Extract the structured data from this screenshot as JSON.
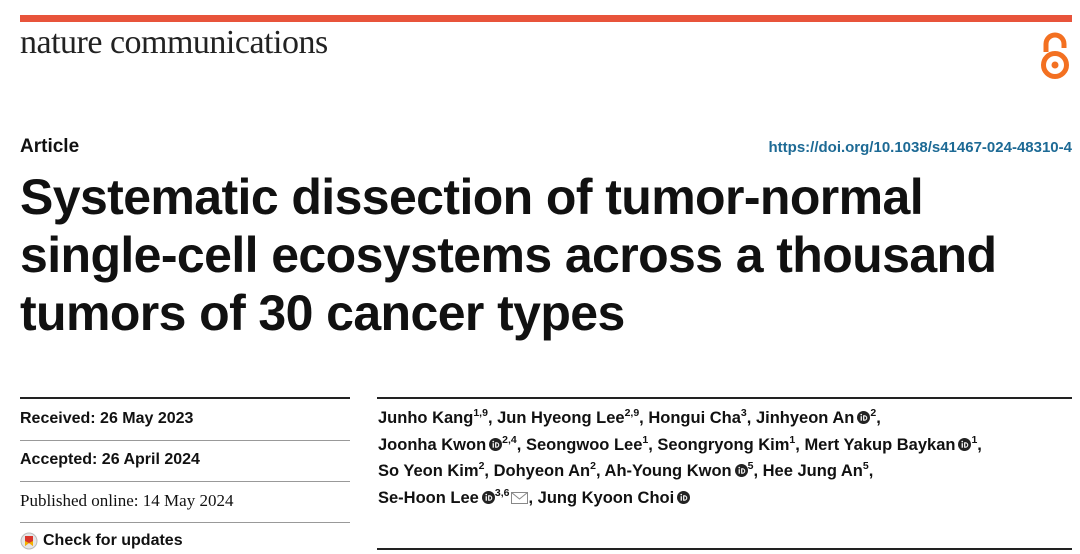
{
  "journal": {
    "name": "nature communications",
    "brand_color": "#e8543b",
    "open_access_icon": "open-access-icon"
  },
  "article": {
    "type": "Article",
    "doi": "https://doi.org/10.1038/s41467-024-48310-4",
    "title_lines": [
      "Systematic dissection of tumor-normal",
      "single-cell ecosystems across a thousand",
      "tumors of 30 cancer types"
    ]
  },
  "dates": {
    "received": "Received: 26 May 2023",
    "accepted": "Accepted: 26 April 2024",
    "published": "Published online: 14 May 2024"
  },
  "check_updates": {
    "label": "Check for updates",
    "icon": "check-for-updates-icon"
  },
  "authors": [
    {
      "name": "Junho Kang",
      "aff": "1,9",
      "orcid": false
    },
    {
      "name": "Jun Hyeong Lee",
      "aff": "2,9",
      "orcid": false
    },
    {
      "name": "Hongui Cha",
      "aff": "3",
      "orcid": false
    },
    {
      "name": "Jinhyeon An",
      "aff": "2",
      "orcid": true
    },
    {
      "name": "Joonha Kwon",
      "aff": "2,4",
      "orcid": true
    },
    {
      "name": "Seongwoo Lee",
      "aff": "1",
      "orcid": false
    },
    {
      "name": "Seongryong Kim",
      "aff": "1",
      "orcid": false
    },
    {
      "name": "Mert Yakup Baykan",
      "aff": "1",
      "orcid": true
    },
    {
      "name": "So Yeon Kim",
      "aff": "2",
      "orcid": false
    },
    {
      "name": "Dohyeon An",
      "aff": "2",
      "orcid": false
    },
    {
      "name": "Ah-Young Kwon",
      "aff": "5",
      "orcid": true
    },
    {
      "name": "Hee Jung An",
      "aff": "5",
      "orcid": false
    },
    {
      "name": "Se-Hoon Lee",
      "aff": "3,6",
      "orcid": true,
      "email": true
    },
    {
      "name": "Jung Kyoon Choi",
      "aff": "",
      "orcid": true
    }
  ]
}
